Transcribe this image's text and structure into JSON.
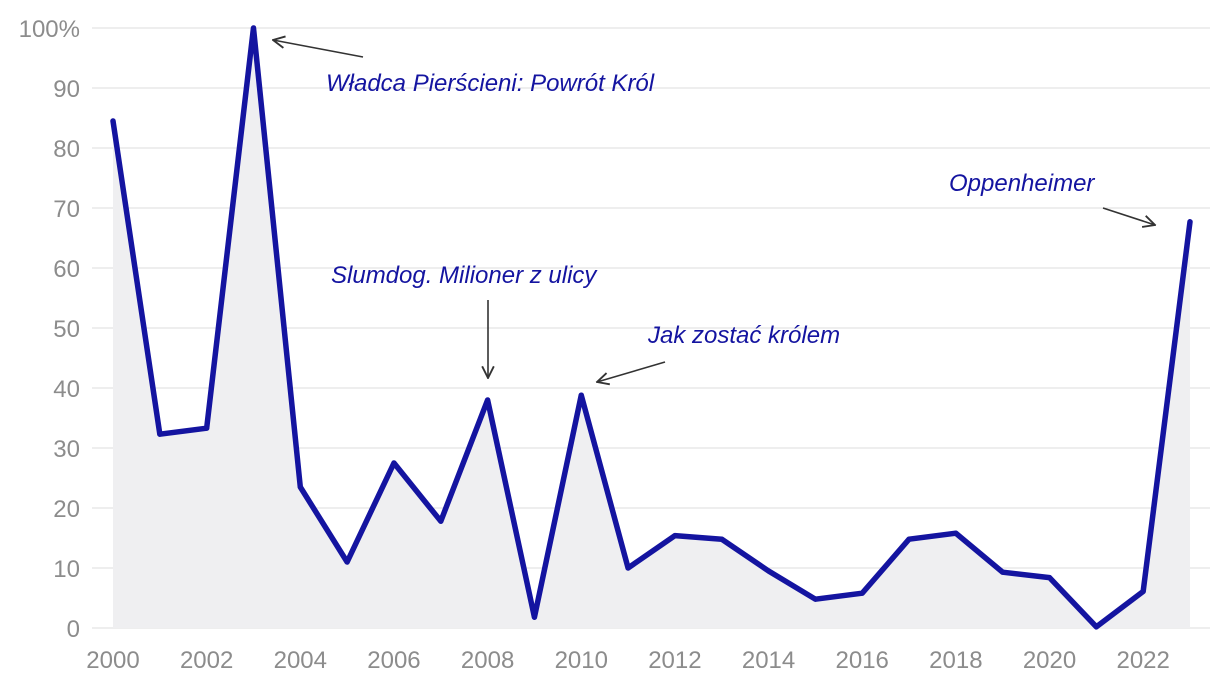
{
  "chart_data": {
    "type": "area",
    "title": "",
    "xlabel": "",
    "ylabel": "",
    "x": [
      2000,
      2001,
      2002,
      2003,
      2004,
      2005,
      2006,
      2007,
      2008,
      2009,
      2010,
      2011,
      2012,
      2013,
      2014,
      2015,
      2016,
      2017,
      2018,
      2019,
      2020,
      2021,
      2022,
      2023
    ],
    "series": [
      {
        "values": [
          84.5,
          32.3,
          33.3,
          100,
          23.5,
          11,
          27.5,
          17.8,
          38,
          1.8,
          38.8,
          10,
          15.4,
          14.8,
          9.5,
          4.8,
          5.8,
          14.8,
          15.8,
          9.3,
          8.4,
          0.2,
          6.1,
          67.7
        ]
      }
    ],
    "xlim": [
      2000,
      2023
    ],
    "ylim": [
      0,
      100
    ],
    "y_ticks": [
      0,
      10,
      20,
      30,
      40,
      50,
      60,
      70,
      80,
      90,
      100
    ],
    "y_tick_labels": [
      "0",
      "10",
      "20",
      "30",
      "40",
      "50",
      "60",
      "70",
      "80",
      "90",
      "100%"
    ],
    "x_ticks": [
      2000,
      2002,
      2004,
      2006,
      2008,
      2010,
      2012,
      2014,
      2016,
      2018,
      2020,
      2022
    ],
    "x_tick_labels": [
      "2000",
      "2002",
      "2004",
      "2006",
      "2008",
      "2010",
      "2012",
      "2014",
      "2016",
      "2018",
      "2020",
      "2022"
    ],
    "grid": true,
    "annotations": [
      {
        "text": "Władca Pierścieni: Powrót Król",
        "target_x": 2003,
        "target_y": 100
      },
      {
        "text": "Slumdog. Milioner z ulicy",
        "target_x": 2008,
        "target_y": 38
      },
      {
        "text": "Jak zostać królem",
        "target_x": 2010,
        "target_y": 38.8
      },
      {
        "text": "Oppenheimer",
        "target_x": 2023,
        "target_y": 67.7
      }
    ],
    "colors": {
      "line": "#1414a0",
      "fill": "#efeff1",
      "annotation_text": "#1414a0",
      "arrow": "#333333",
      "grid": "#dcdcdc",
      "tick_text": "#8c8c8c"
    }
  }
}
